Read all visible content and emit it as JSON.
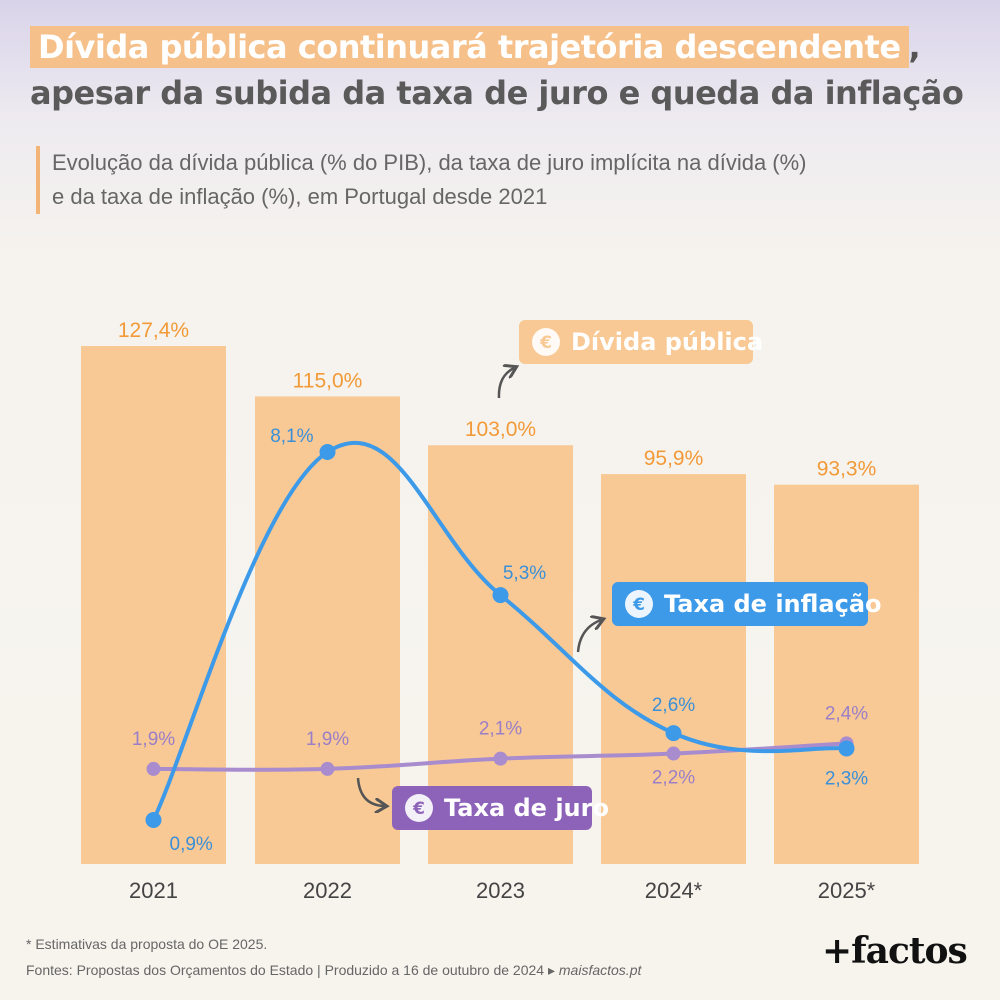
{
  "header": {
    "title_highlight": "Dívida pública continuará trajetória descendente",
    "title_after": ",",
    "title_line2": "apesar da subida da taxa de juro e queda da inflação",
    "subtitle_line1": "Evolução da dívida pública (% do PIB), da taxa de juro implícita na dívida (%)",
    "subtitle_line2": "e da taxa de inflação (%), em Portugal desde 2021"
  },
  "chart_data": {
    "type": "bar",
    "categories": [
      "2021",
      "2022",
      "2023",
      "2024*",
      "2025*"
    ],
    "series": [
      {
        "name": "Dívida pública",
        "kind": "bar",
        "values": [
          127.4,
          115.0,
          103.0,
          95.9,
          93.3
        ],
        "labels": [
          "127,4%",
          "115,0%",
          "103,0%",
          "95,9%",
          "93,3%"
        ],
        "color": "#f9c995",
        "label_color": "#f29a38"
      },
      {
        "name": "Taxa de inflação",
        "kind": "line",
        "values": [
          0.9,
          8.1,
          5.3,
          2.6,
          2.3
        ],
        "labels": [
          "0,9%",
          "8,1%",
          "5,3%",
          "2,6%",
          "2,3%"
        ],
        "color": "#3d9ae8"
      },
      {
        "name": "Taxa de juro",
        "kind": "line",
        "values": [
          1.9,
          1.9,
          2.1,
          2.2,
          2.4
        ],
        "labels": [
          "1,9%",
          "1,9%",
          "2,1%",
          "2,2%",
          "2,4%"
        ],
        "color": "#a98ccd"
      }
    ],
    "bar_ylim": [
      0,
      135
    ],
    "line_ylim": [
      0,
      9
    ],
    "legend": [
      "Dívida pública",
      "Taxa de inflação",
      "Taxa de juro"
    ],
    "legend_icons": [
      "money-bag-icon",
      "hand-coin-icon",
      "coin-stack-icon"
    ]
  },
  "footer": {
    "note": "* Estimativas da proposta do OE 2025.",
    "source": "Fontes: Propostas dos Orçamentos do Estado | Produzido a 16 de outubro de 2024 ▸",
    "site": "maisfactos.pt",
    "logo": "+factos"
  }
}
